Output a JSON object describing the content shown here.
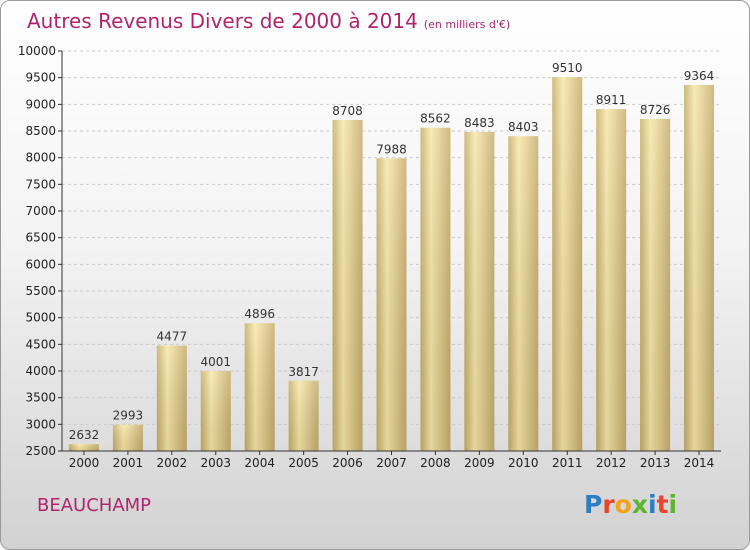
{
  "chart_data": {
    "type": "bar",
    "title": "Autres Revenus Divers de 2000 à 2014",
    "subtitle": "(en milliers d'€)",
    "categories": [
      "2000",
      "2001",
      "2002",
      "2003",
      "2004",
      "2005",
      "2006",
      "2007",
      "2008",
      "2009",
      "2010",
      "2011",
      "2012",
      "2013",
      "2014"
    ],
    "values": [
      2632,
      2993,
      4477,
      4001,
      4896,
      3817,
      8708,
      7988,
      8562,
      8483,
      8403,
      9510,
      8911,
      8726,
      9364
    ],
    "ylim": [
      2500,
      10000
    ],
    "yticks": [
      2500,
      3000,
      3500,
      4000,
      4500,
      5000,
      5500,
      6000,
      6500,
      7000,
      7500,
      8000,
      8500,
      9000,
      9500,
      10000
    ],
    "grid": true,
    "xlabel": "",
    "ylabel": ""
  },
  "footer": {
    "city": "BEAUCHAMP",
    "logo_letters": [
      "P",
      "r",
      "o",
      "x",
      "i",
      "t",
      "i"
    ],
    "logo_colors": [
      "#2a7ec4",
      "#e8452b",
      "#f2a21c",
      "#5cb531",
      "#2a7ec4",
      "#e8452b",
      "#5cb531"
    ]
  },
  "colors": {
    "bar_light": "#f8e8a8",
    "bar_dark": "#c7ae6c",
    "title": "#b0246e",
    "grid": "#cccccc"
  }
}
